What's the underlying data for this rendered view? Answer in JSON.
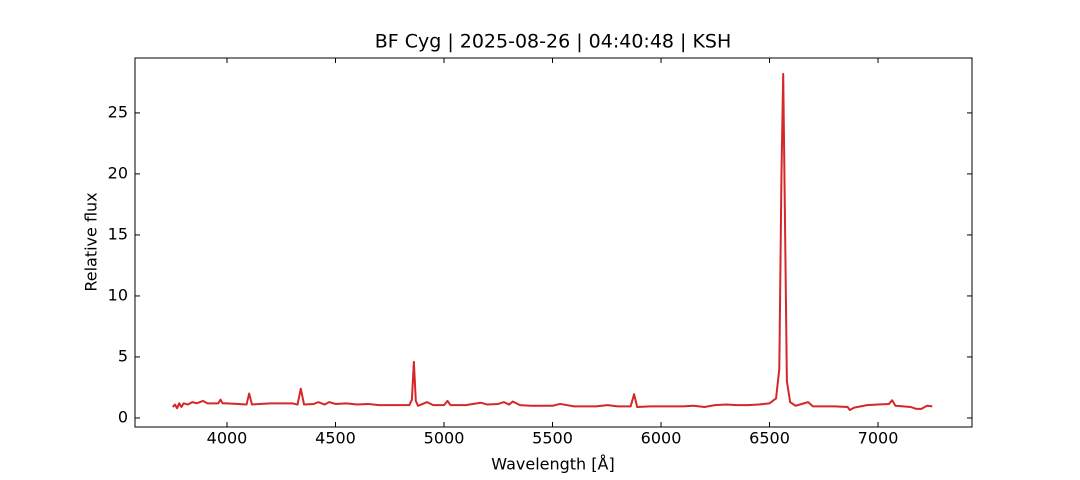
{
  "chart_data": {
    "type": "line",
    "title": "BF Cyg | 2025-08-26 | 04:40:48 | KSH",
    "x_label": "Wavelength [Å]",
    "y_label": "Relative flux",
    "xlim": [
      3576,
      7433
    ],
    "ylim": [
      -0.74,
      29.5
    ],
    "xticks": [
      4000,
      4500,
      5000,
      5500,
      6000,
      6500,
      7000
    ],
    "yticks": [
      0,
      5,
      10,
      15,
      20,
      25
    ],
    "series": [
      {
        "color": "#d62728",
        "x": [
          3750,
          3760,
          3770,
          3780,
          3790,
          3800,
          3820,
          3840,
          3860,
          3889,
          3910,
          3940,
          3960,
          3970,
          3980,
          4000,
          4050,
          4090,
          4102,
          4115,
          4150,
          4200,
          4250,
          4300,
          4325,
          4340,
          4355,
          4400,
          4420,
          4450,
          4471,
          4500,
          4550,
          4600,
          4650,
          4700,
          4750,
          4800,
          4840,
          4852,
          4861,
          4870,
          4880,
          4922,
          4950,
          5000,
          5016,
          5030,
          5100,
          5169,
          5200,
          5250,
          5276,
          5300,
          5317,
          5350,
          5400,
          5450,
          5500,
          5535,
          5600,
          5700,
          5754,
          5800,
          5860,
          5876,
          5890,
          5950,
          6000,
          6100,
          6150,
          6200,
          6248,
          6300,
          6350,
          6400,
          6450,
          6500,
          6530,
          6545,
          6555,
          6563,
          6570,
          6580,
          6595,
          6620,
          6678,
          6700,
          6800,
          6860,
          6870,
          6890,
          6950,
          7000,
          7050,
          7065,
          7080,
          7150,
          7175,
          7200,
          7225,
          7250
        ],
        "values": [
          0.9,
          1.1,
          0.8,
          1.2,
          0.9,
          1.2,
          1.1,
          1.3,
          1.2,
          1.4,
          1.2,
          1.2,
          1.2,
          1.5,
          1.2,
          1.2,
          1.15,
          1.1,
          2.0,
          1.1,
          1.15,
          1.2,
          1.2,
          1.2,
          1.1,
          2.4,
          1.1,
          1.15,
          1.3,
          1.1,
          1.3,
          1.15,
          1.2,
          1.1,
          1.15,
          1.05,
          1.05,
          1.05,
          1.05,
          1.5,
          4.6,
          1.4,
          1.0,
          1.3,
          1.05,
          1.05,
          1.4,
          1.05,
          1.05,
          1.25,
          1.1,
          1.15,
          1.3,
          1.1,
          1.35,
          1.05,
          1.0,
          1.0,
          1.0,
          1.15,
          0.95,
          0.95,
          1.05,
          0.95,
          0.95,
          1.95,
          0.9,
          0.95,
          0.95,
          0.95,
          1.0,
          0.9,
          1.05,
          1.1,
          1.05,
          1.05,
          1.1,
          1.2,
          1.6,
          4.0,
          20,
          28.2,
          18,
          3.0,
          1.3,
          1.0,
          1.3,
          0.95,
          0.95,
          0.9,
          0.65,
          0.85,
          1.05,
          1.1,
          1.15,
          1.45,
          1.0,
          0.9,
          0.75,
          0.75,
          1.0,
          0.95
        ]
      }
    ]
  }
}
